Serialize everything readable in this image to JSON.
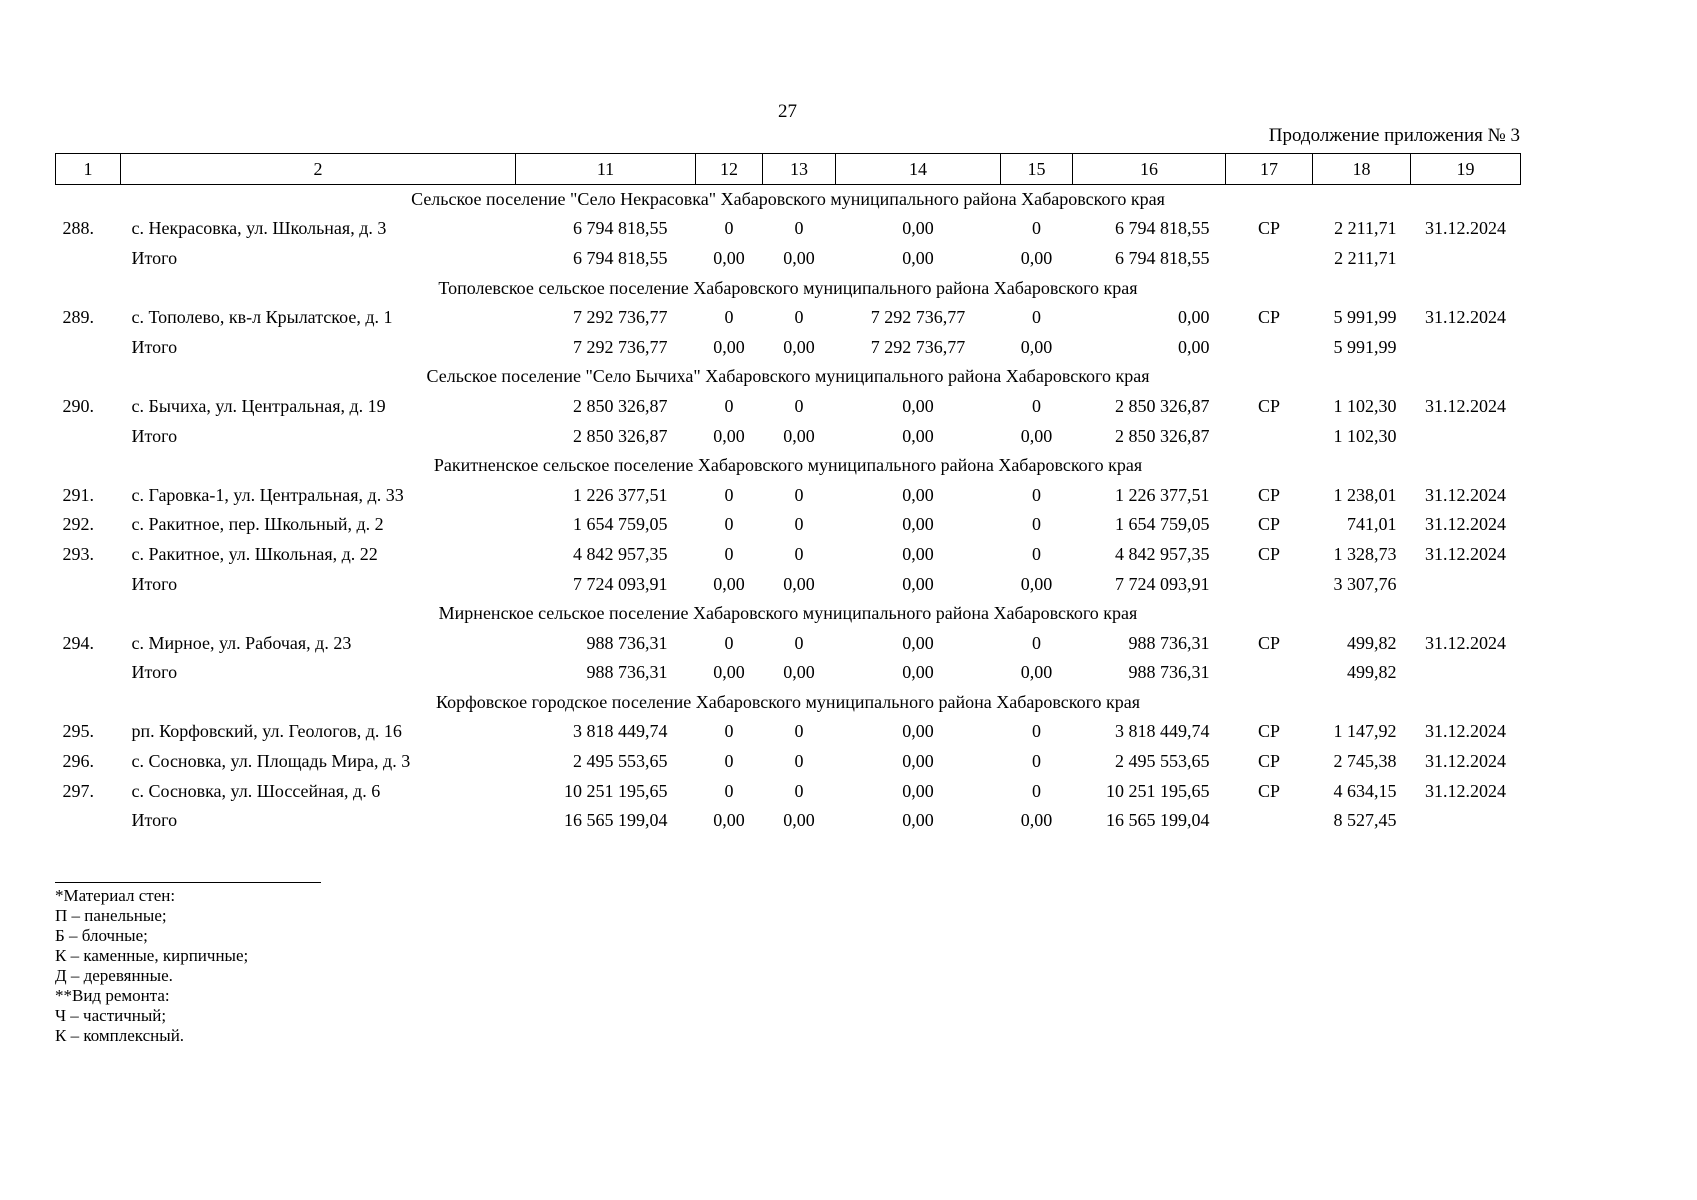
{
  "page": {
    "number": "27",
    "continuation": "Продолжение приложения № 3"
  },
  "table": {
    "headers": [
      "1",
      "2",
      "11",
      "12",
      "13",
      "14",
      "15",
      "16",
      "17",
      "18",
      "19"
    ],
    "sections": [
      {
        "title": "Сельское поселение \"Село Некрасовка\" Хабаровского муниципального района Хабаровского края",
        "rows": [
          {
            "cells": [
              "288.",
              "с. Некрасовка, ул. Школьная, д. 3",
              "6 794 818,55",
              "0",
              "0",
              "0,00",
              "0",
              "6 794 818,55",
              "СР",
              "2 211,71",
              "31.12.2024"
            ]
          },
          {
            "total": true,
            "cells": [
              "",
              "Итого",
              "6 794 818,55",
              "0,00",
              "0,00",
              "0,00",
              "0,00",
              "6 794 818,55",
              "",
              "2 211,71",
              ""
            ]
          }
        ]
      },
      {
        "title": "Тополевское сельское поселение Хабаровского муниципального района Хабаровского края",
        "rows": [
          {
            "cells": [
              "289.",
              "с. Тополево, кв-л Крылатское, д. 1",
              "7 292 736,77",
              "0",
              "0",
              "7 292 736,77",
              "0",
              "0,00",
              "СР",
              "5 991,99",
              "31.12.2024"
            ]
          },
          {
            "total": true,
            "cells": [
              "",
              "Итого",
              "7 292 736,77",
              "0,00",
              "0,00",
              "7 292 736,77",
              "0,00",
              "0,00",
              "",
              "5 991,99",
              ""
            ]
          }
        ]
      },
      {
        "title": "Сельское поселение \"Село Бычиха\" Хабаровского муниципального района Хабаровского края",
        "rows": [
          {
            "cells": [
              "290.",
              "с. Бычиха, ул. Центральная, д. 19",
              "2 850 326,87",
              "0",
              "0",
              "0,00",
              "0",
              "2 850 326,87",
              "СР",
              "1 102,30",
              "31.12.2024"
            ]
          },
          {
            "total": true,
            "cells": [
              "",
              "Итого",
              "2 850 326,87",
              "0,00",
              "0,00",
              "0,00",
              "0,00",
              "2 850 326,87",
              "",
              "1 102,30",
              ""
            ]
          }
        ]
      },
      {
        "title": "Ракитненское сельское поселение Хабаровского муниципального района Хабаровского края",
        "rows": [
          {
            "cells": [
              "291.",
              "с. Гаровка-1, ул. Центральная, д. 33",
              "1 226 377,51",
              "0",
              "0",
              "0,00",
              "0",
              "1 226 377,51",
              "СР",
              "1 238,01",
              "31.12.2024"
            ]
          },
          {
            "cells": [
              "292.",
              "с. Ракитное, пер. Школьный, д. 2",
              "1 654 759,05",
              "0",
              "0",
              "0,00",
              "0",
              "1 654 759,05",
              "СР",
              "741,01",
              "31.12.2024"
            ]
          },
          {
            "cells": [
              "293.",
              "с. Ракитное, ул. Школьная, д. 22",
              "4 842 957,35",
              "0",
              "0",
              "0,00",
              "0",
              "4 842 957,35",
              "СР",
              "1 328,73",
              "31.12.2024"
            ]
          },
          {
            "total": true,
            "cells": [
              "",
              "Итого",
              "7 724 093,91",
              "0,00",
              "0,00",
              "0,00",
              "0,00",
              "7 724 093,91",
              "",
              "3 307,76",
              ""
            ]
          }
        ]
      },
      {
        "title": "Мирненское сельское поселение Хабаровского муниципального района Хабаровского края",
        "rows": [
          {
            "cells": [
              "294.",
              "с. Мирное, ул. Рабочая, д. 23",
              "988 736,31",
              "0",
              "0",
              "0,00",
              "0",
              "988 736,31",
              "СР",
              "499,82",
              "31.12.2024"
            ]
          },
          {
            "total": true,
            "cells": [
              "",
              "Итого",
              "988 736,31",
              "0,00",
              "0,00",
              "0,00",
              "0,00",
              "988 736,31",
              "",
              "499,82",
              ""
            ]
          }
        ]
      },
      {
        "title": "Корфовское городское поселение Хабаровского муниципального района Хабаровского края",
        "rows": [
          {
            "cells": [
              "295.",
              "рп. Корфовский, ул. Геологов, д. 16",
              "3 818 449,74",
              "0",
              "0",
              "0,00",
              "0",
              "3 818 449,74",
              "СР",
              "1 147,92",
              "31.12.2024"
            ]
          },
          {
            "cells": [
              "296.",
              "с. Сосновка, ул. Площадь Мира, д. 3",
              "2 495 553,65",
              "0",
              "0",
              "0,00",
              "0",
              "2 495 553,65",
              "СР",
              "2 745,38",
              "31.12.2024"
            ]
          },
          {
            "cells": [
              "297.",
              "с. Сосновка, ул. Шоссейная, д. 6",
              "10 251 195,65",
              "0",
              "0",
              "0,00",
              "0",
              "10 251 195,65",
              "СР",
              "4 634,15",
              "31.12.2024"
            ]
          },
          {
            "total": true,
            "cells": [
              "",
              "Итого",
              "16 565 199,04",
              "0,00",
              "0,00",
              "0,00",
              "0,00",
              "16 565 199,04",
              "",
              "8 527,45",
              ""
            ]
          }
        ]
      }
    ]
  },
  "footnotes": [
    "*Материал стен:",
    "П – панельные;",
    "Б – блочные;",
    "К – каменные, кирпичные;",
    "Д – деревянные.",
    "**Вид ремонта:",
    "Ч – частичный;",
    "К – комплексный."
  ]
}
